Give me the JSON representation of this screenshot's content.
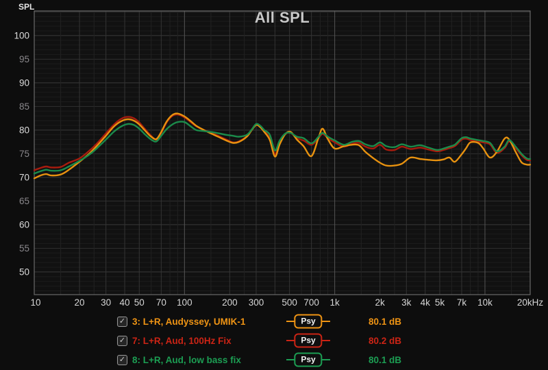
{
  "header": {
    "title": "All SPL",
    "axis_corner_label": "SPL"
  },
  "legend": {
    "psy_label": "Psy",
    "check_glyph": "✓",
    "checked": [
      true,
      true,
      true
    ]
  },
  "chart_data": {
    "type": "line",
    "x_scale": "log",
    "title": "All SPL",
    "ylabel": "SPL",
    "y_unit": "dB",
    "x_axis": {
      "min": 10,
      "max": 20000,
      "ticks": [
        {
          "value": 10,
          "label": "10"
        },
        {
          "value": 20,
          "label": "20"
        },
        {
          "value": 30,
          "label": "30"
        },
        {
          "value": 40,
          "label": "40"
        },
        {
          "value": 50,
          "label": "50"
        },
        {
          "value": 70,
          "label": "70"
        },
        {
          "value": 100,
          "label": "100"
        },
        {
          "value": 200,
          "label": "200"
        },
        {
          "value": 300,
          "label": "300"
        },
        {
          "value": 500,
          "label": "500"
        },
        {
          "value": 700,
          "label": "700"
        },
        {
          "value": 1000,
          "label": "1k"
        },
        {
          "value": 2000,
          "label": "2k"
        },
        {
          "value": 3000,
          "label": "3k"
        },
        {
          "value": 4000,
          "label": "4k"
        },
        {
          "value": 5000,
          "label": "5k"
        },
        {
          "value": 7000,
          "label": "7k"
        },
        {
          "value": 10000,
          "label": "10k"
        },
        {
          "value": 20000,
          "label": "20kHz"
        }
      ]
    },
    "y_axis": {
      "min": 45.2,
      "max": 105.2,
      "major_ticks": [
        50,
        60,
        70,
        80,
        90,
        100
      ],
      "minor_ticks": [
        55,
        65,
        75,
        85,
        95
      ]
    },
    "grid": {
      "minor_multipliers": [
        1.5,
        2,
        2.5,
        3,
        4,
        5,
        6,
        7,
        8,
        9
      ],
      "labeled_multipliers": [
        2,
        3,
        4,
        5,
        7
      ],
      "colors": {
        "decade": "#555555",
        "labeled": "#343434",
        "minor": "#222222",
        "h10": "#3a3a3a",
        "h5": "#303030",
        "h1": "#1c1c1c",
        "border": "#6a6a6a",
        "plot_bg": "#111111"
      }
    },
    "frequencies": [
      10,
      11,
      12,
      13,
      15,
      17,
      20,
      23,
      26,
      30,
      34,
      38,
      42,
      46,
      50,
      55,
      60,
      65,
      70,
      76,
      83,
      90,
      100,
      110,
      120,
      135,
      150,
      170,
      190,
      210,
      230,
      260,
      280,
      300,
      320,
      340,
      370,
      400,
      430,
      470,
      510,
      560,
      620,
      700,
      780,
      830,
      900,
      1000,
      1150,
      1300,
      1450,
      1600,
      1800,
      2000,
      2200,
      2500,
      2800,
      3200,
      3700,
      4200,
      4800,
      5300,
      5800,
      6300,
      7000,
      7500,
      8000,
      9000,
      9700,
      10800,
      12000,
      13500,
      14500,
      16000,
      17500,
      19000,
      20000
    ],
    "series": [
      {
        "label": "3: L+R, Audyssey, UMIK-1",
        "value_label": "80.1 dB",
        "smoothing": "Psy",
        "color": "#e8920f",
        "text_color": "#ef9414",
        "z": 1,
        "values": [
          69.8,
          70.4,
          70.7,
          70.4,
          70.6,
          71.6,
          73.3,
          74.9,
          76.6,
          78.8,
          80.8,
          81.9,
          82.3,
          82.0,
          81.2,
          79.8,
          78.6,
          78.1,
          79.6,
          81.8,
          83.2,
          83.5,
          82.9,
          81.9,
          80.9,
          80.0,
          79.3,
          78.5,
          77.8,
          77.3,
          77.5,
          78.6,
          80.0,
          81.1,
          80.6,
          79.6,
          77.9,
          74.4,
          77.0,
          79.2,
          79.6,
          78.0,
          76.6,
          74.5,
          78.4,
          80.3,
          78.1,
          76.1,
          76.6,
          76.9,
          76.8,
          75.4,
          74.1,
          73.1,
          72.5,
          72.5,
          72.9,
          74.2,
          73.9,
          73.7,
          73.6,
          73.8,
          74.2,
          73.3,
          74.9,
          76.2,
          77.4,
          77.3,
          76.2,
          74.2,
          75.4,
          78.2,
          78.0,
          75.4,
          73.2,
          72.7,
          72.7
        ]
      },
      {
        "label": "7: L+R, Aud, 100Hz Fix",
        "value_label": "80.2 dB",
        "smoothing": "Psy",
        "color": "#a81c0e",
        "text_color": "#cc2415",
        "z": 0,
        "values": [
          71.5,
          72.0,
          72.3,
          72.1,
          72.2,
          73.1,
          74.0,
          75.5,
          77.1,
          79.3,
          81.2,
          82.4,
          82.8,
          82.5,
          81.6,
          80.1,
          78.8,
          78.0,
          79.4,
          81.6,
          83.0,
          83.3,
          82.7,
          81.7,
          80.8,
          80.0,
          79.5,
          78.7,
          78.0,
          77.4,
          77.6,
          78.7,
          80.1,
          81.2,
          80.7,
          79.8,
          78.3,
          74.9,
          77.3,
          79.2,
          79.4,
          78.3,
          77.8,
          76.9,
          78.3,
          79.2,
          78.3,
          77.4,
          76.5,
          77.1,
          77.3,
          76.5,
          76.1,
          76.9,
          75.9,
          75.8,
          76.5,
          76.0,
          76.3,
          75.9,
          75.5,
          75.8,
          76.2,
          76.6,
          78.0,
          78.2,
          77.9,
          77.6,
          77.4,
          77.0,
          75.2,
          76.2,
          77.6,
          76.2,
          74.7,
          73.7,
          73.6
        ]
      },
      {
        "label": "8: L+R, Aud, low bass fix",
        "value_label": "80.1 dB",
        "smoothing": "Psy",
        "color": "#1b8c4b",
        "text_color": "#1c9e53",
        "z": 2,
        "values": [
          70.8,
          71.3,
          71.6,
          71.4,
          71.5,
          72.3,
          73.5,
          74.7,
          76.1,
          78.0,
          79.7,
          80.8,
          81.3,
          81.1,
          80.3,
          79.0,
          78.0,
          77.6,
          78.8,
          80.2,
          81.2,
          81.7,
          81.7,
          80.8,
          80.0,
          79.8,
          79.6,
          79.3,
          79.0,
          78.8,
          78.6,
          79.0,
          80.1,
          81.3,
          80.9,
          80.0,
          79.0,
          75.7,
          77.8,
          79.3,
          79.4,
          78.6,
          78.3,
          77.2,
          78.6,
          79.4,
          78.6,
          77.8,
          76.9,
          77.5,
          77.7,
          77.0,
          76.6,
          77.4,
          76.6,
          76.4,
          77.0,
          76.5,
          76.8,
          76.3,
          75.8,
          76.1,
          76.5,
          76.9,
          78.3,
          78.5,
          78.2,
          77.9,
          77.7,
          77.3,
          75.5,
          76.5,
          77.9,
          76.5,
          75.0,
          74.0,
          73.9
        ]
      }
    ]
  }
}
